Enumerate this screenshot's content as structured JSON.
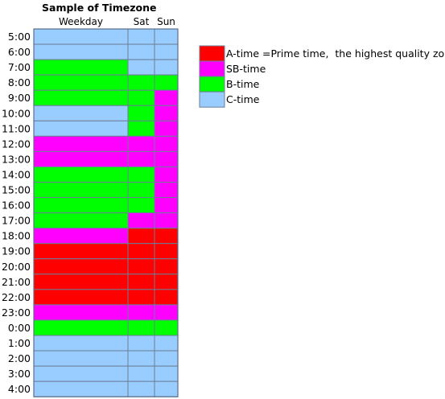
{
  "chart_data": {
    "type": "heatmap",
    "title": "Sample of Timezone",
    "columns": [
      "Weekday",
      "Sat",
      "Sun"
    ],
    "rows": [
      "5:00",
      "6:00",
      "7:00",
      "8:00",
      "9:00",
      "10:00",
      "11:00",
      "12:00",
      "13:00",
      "14:00",
      "15:00",
      "16:00",
      "17:00",
      "18:00",
      "19:00",
      "20:00",
      "21:00",
      "22:00",
      "23:00",
      "0:00",
      "1:00",
      "2:00",
      "3:00",
      "4:00"
    ],
    "categories": [
      {
        "key": "A",
        "label": "A-time =Prime time,  the highest quality zone",
        "color": "#ff0000"
      },
      {
        "key": "SB",
        "label": "SB-time",
        "color": "#ff00ff"
      },
      {
        "key": "B",
        "label": "B-time",
        "color": "#00ff00"
      },
      {
        "key": "C",
        "label": "C-time",
        "color": "#99ccff"
      }
    ],
    "cells": [
      [
        "C",
        "C",
        "C"
      ],
      [
        "C",
        "C",
        "C"
      ],
      [
        "B",
        "C",
        "C"
      ],
      [
        "B",
        "B",
        "B"
      ],
      [
        "B",
        "B",
        "SB"
      ],
      [
        "C",
        "B",
        "SB"
      ],
      [
        "C",
        "B",
        "SB"
      ],
      [
        "SB",
        "SB",
        "SB"
      ],
      [
        "SB",
        "SB",
        "SB"
      ],
      [
        "B",
        "B",
        "SB"
      ],
      [
        "B",
        "B",
        "SB"
      ],
      [
        "B",
        "B",
        "SB"
      ],
      [
        "B",
        "SB",
        "SB"
      ],
      [
        "SB",
        "A",
        "A"
      ],
      [
        "A",
        "A",
        "A"
      ],
      [
        "A",
        "A",
        "A"
      ],
      [
        "A",
        "A",
        "A"
      ],
      [
        "A",
        "A",
        "A"
      ],
      [
        "SB",
        "SB",
        "SB"
      ],
      [
        "B",
        "B",
        "B"
      ],
      [
        "C",
        "C",
        "C"
      ],
      [
        "C",
        "C",
        "C"
      ],
      [
        "C",
        "C",
        "C"
      ],
      [
        "C",
        "C",
        "C"
      ]
    ]
  }
}
